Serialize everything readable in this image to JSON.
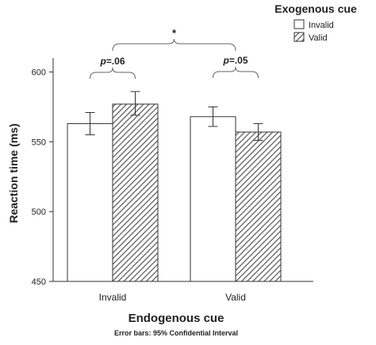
{
  "chart_data": {
    "type": "bar",
    "categories": [
      "Invalid",
      "Valid"
    ],
    "series": [
      {
        "name": "Invalid",
        "values": [
          563,
          568
        ],
        "ci_low": [
          555,
          561
        ],
        "ci_high": [
          571,
          575
        ],
        "fill": "#ffffff",
        "pattern": "none"
      },
      {
        "name": "Valid",
        "values": [
          577,
          557
        ],
        "ci_low": [
          569,
          551
        ],
        "ci_high": [
          586,
          563
        ],
        "fill": "#ffffff",
        "pattern": "diagonal-hatch"
      }
    ],
    "xlabel": "Endogenous cue",
    "ylabel": "Reaction time (ms)",
    "ylim": [
      450,
      610
    ],
    "yticks": [
      450,
      500,
      550,
      600
    ],
    "legend_title": "Exogenous cue",
    "legend_position": "top-right",
    "footnote": "Error bars: 95% Confidential Interval",
    "annotations": [
      {
        "category": "Invalid",
        "p_italic": "p",
        "p_rest": "=.06"
      },
      {
        "category": "Valid",
        "p_italic": "p",
        "p_rest": "=.05"
      },
      {
        "text": "*",
        "spans": "between-categories"
      }
    ],
    "grid": false,
    "colors": {
      "axis": "#333333",
      "bar_stroke": "#333333",
      "hatch": "#555555",
      "bracket": "#666666"
    }
  }
}
